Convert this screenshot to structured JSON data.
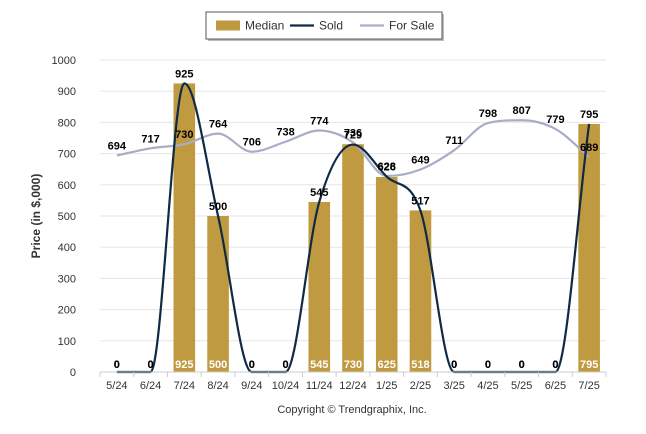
{
  "chart_data": {
    "type": "bar",
    "categories": [
      "5/24",
      "6/24",
      "7/24",
      "8/24",
      "9/24",
      "10/24",
      "11/24",
      "12/24",
      "1/25",
      "2/25",
      "3/25",
      "4/25",
      "5/25",
      "6/25",
      "7/25"
    ],
    "series": [
      {
        "name": "Median",
        "type": "bar",
        "color": "#c09a40",
        "values": [
          0,
          0,
          925,
          500,
          0,
          0,
          545,
          730,
          625,
          518,
          0,
          0,
          0,
          0,
          795
        ]
      },
      {
        "name": "Sold",
        "type": "line",
        "color": "#0f2a44",
        "values": [
          0,
          0,
          925,
          500,
          0,
          0,
          545,
          729,
          626,
          517,
          0,
          0,
          0,
          0,
          795
        ]
      },
      {
        "name": "For Sale",
        "type": "line",
        "color": "#a7adc6",
        "values": [
          694,
          717,
          730,
          764,
          706,
          738,
          774,
          736,
          628,
          649,
          711,
          798,
          807,
          779,
          689
        ]
      }
    ],
    "ylabel": "Price (in $,000)",
    "ylim": [
      0,
      1000
    ],
    "yticks": [
      0,
      100,
      200,
      300,
      400,
      500,
      600,
      700,
      800,
      900,
      1000
    ],
    "grid": true,
    "legend_position": "top-center",
    "credit": "Copyright © Trendgraphix, Inc."
  }
}
